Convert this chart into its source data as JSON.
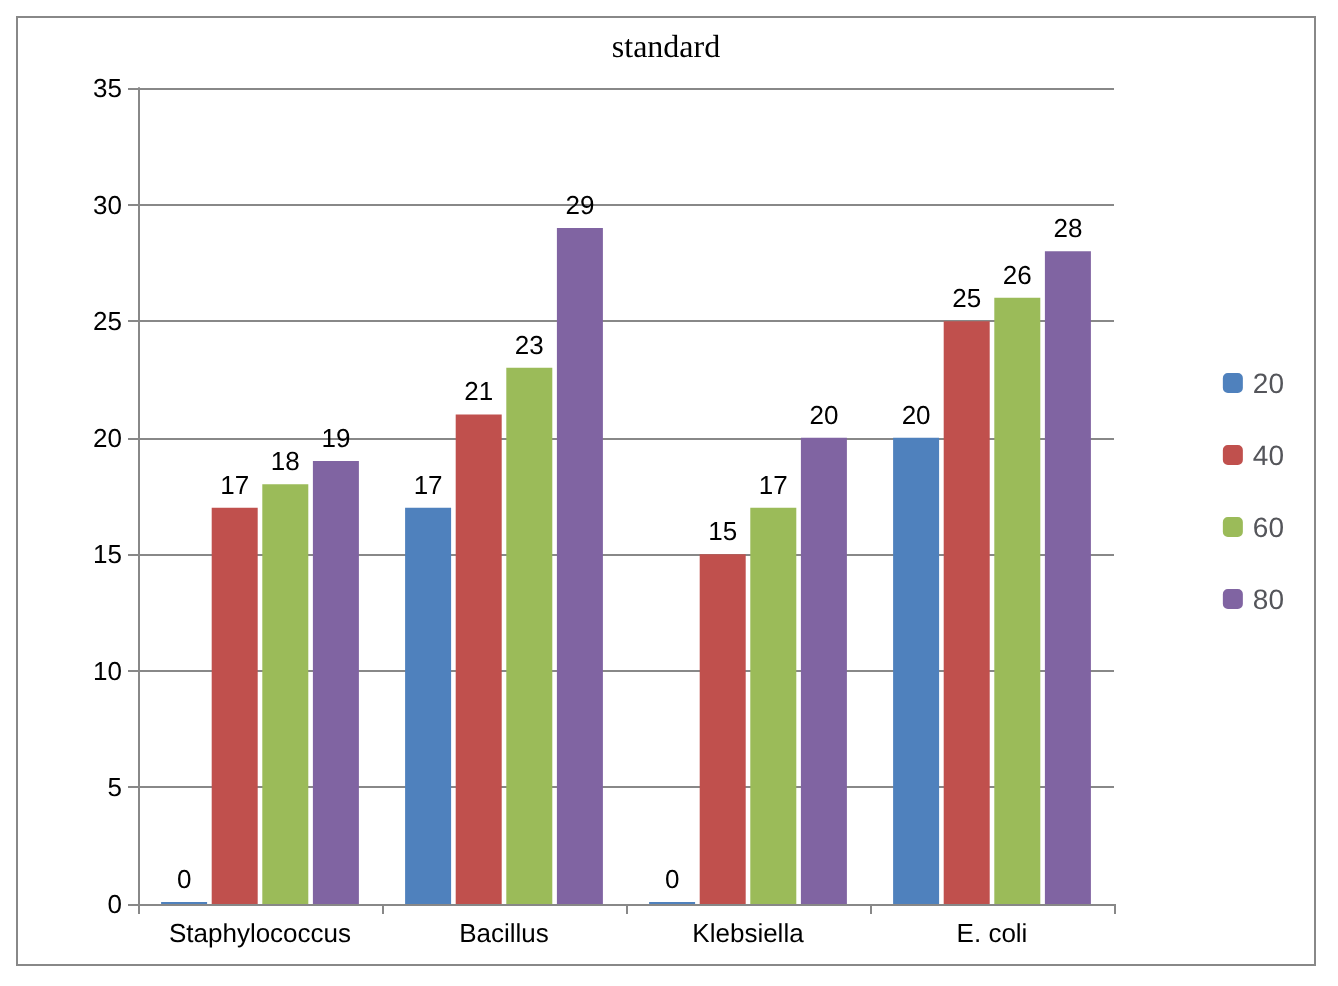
{
  "chart_data": {
    "type": "bar",
    "title": "standard",
    "categories": [
      "Staphylococcus",
      "Bacillus",
      "Klebsiella",
      "E. coli"
    ],
    "series": [
      {
        "name": "20",
        "color": "#4f81bd",
        "values": [
          0,
          17,
          0,
          20
        ]
      },
      {
        "name": "40",
        "color": "#c0504d",
        "values": [
          17,
          21,
          15,
          25
        ]
      },
      {
        "name": "60",
        "color": "#9bbb59",
        "values": [
          18,
          23,
          17,
          26
        ]
      },
      {
        "name": "80",
        "color": "#8064a2",
        "values": [
          19,
          29,
          20,
          28
        ]
      }
    ],
    "ylim": [
      0,
      35
    ],
    "yticks": [
      0,
      5,
      10,
      15,
      20,
      25,
      30,
      35
    ],
    "grid": "y",
    "legend": "right",
    "data_labels": true
  }
}
